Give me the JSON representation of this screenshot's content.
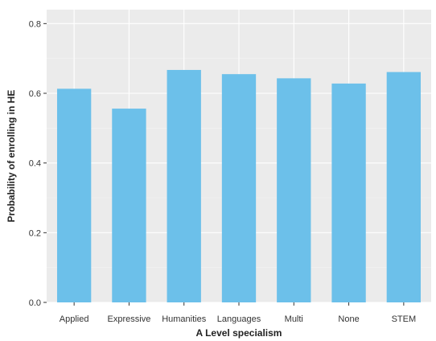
{
  "chart_data": {
    "type": "bar",
    "title": "",
    "xlabel": "A Level specialism",
    "ylabel": "Probability of enrolling in HE",
    "categories": [
      "Applied",
      "Expressive",
      "Humanities",
      "Languages",
      "Multi",
      "None",
      "STEM"
    ],
    "values": [
      0.613,
      0.556,
      0.667,
      0.655,
      0.643,
      0.628,
      0.661
    ],
    "ylim": [
      0,
      0.84
    ],
    "yticks": [
      "0.0",
      "0.2",
      "0.4",
      "0.6",
      "0.8"
    ],
    "ytick_values": [
      0,
      0.2,
      0.4,
      0.6,
      0.8
    ],
    "grid": true,
    "colors": {
      "bar": "#6cc0ea",
      "panel": "#ebebeb",
      "grid_major": "#ffffff",
      "grid_minor": "#f3f3f3"
    }
  }
}
